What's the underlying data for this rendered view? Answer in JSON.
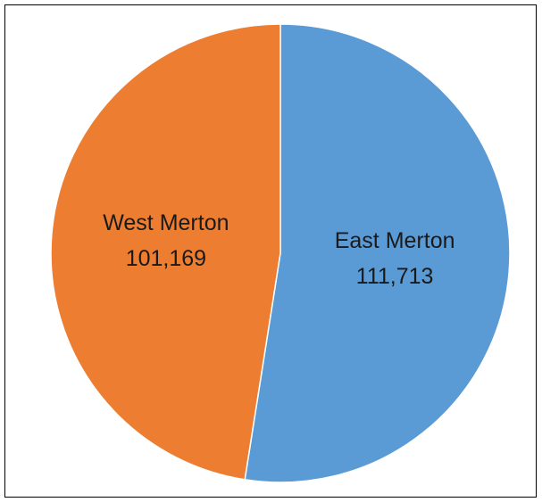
{
  "chart_data": {
    "type": "pie",
    "title": "",
    "legend": "none",
    "slices": [
      {
        "name": "East Merton",
        "value": 111713,
        "label": "111,713",
        "color": "#5b9bd5"
      },
      {
        "name": "West Merton",
        "value": 101169,
        "label": "101,169",
        "color": "#ed7d31"
      }
    ]
  }
}
